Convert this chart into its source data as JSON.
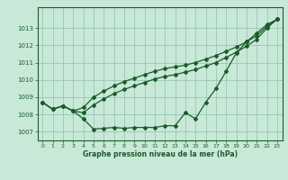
{
  "title": "Graphe pression niveau de la mer (hPa)",
  "background_color": "#c8e8d8",
  "grid_color": "#96c8b4",
  "line_color": "#1a5c28",
  "text_color": "#1a5c28",
  "xlim": [
    -0.5,
    23.5
  ],
  "ylim": [
    1006.5,
    1014.2
  ],
  "yticks": [
    1007,
    1008,
    1009,
    1010,
    1011,
    1012,
    1013
  ],
  "xticks": [
    0,
    1,
    2,
    3,
    4,
    5,
    6,
    7,
    8,
    9,
    10,
    11,
    12,
    13,
    14,
    15,
    16,
    17,
    18,
    19,
    20,
    21,
    22,
    23
  ],
  "line1": [
    1008.7,
    1008.3,
    1008.5,
    1008.2,
    1007.75,
    1007.15,
    1007.2,
    1007.25,
    1007.2,
    1007.25,
    1007.25,
    1007.25,
    1007.35,
    1007.35,
    1008.1,
    1007.75,
    1008.7,
    1009.5,
    1010.5,
    1011.55,
    1012.2,
    1012.7,
    1013.2,
    1013.5
  ],
  "line2": [
    1008.7,
    1008.3,
    1008.5,
    1008.2,
    1008.1,
    1008.55,
    1008.9,
    1009.2,
    1009.45,
    1009.65,
    1009.85,
    1010.05,
    1010.2,
    1010.3,
    1010.45,
    1010.6,
    1010.8,
    1011.0,
    1011.3,
    1011.6,
    1011.95,
    1012.35,
    1013.0,
    1013.5
  ],
  "line3": [
    1008.7,
    1008.3,
    1008.5,
    1008.2,
    1008.4,
    1009.0,
    1009.35,
    1009.65,
    1009.9,
    1010.1,
    1010.3,
    1010.5,
    1010.65,
    1010.75,
    1010.85,
    1011.0,
    1011.2,
    1011.4,
    1011.65,
    1011.9,
    1012.2,
    1012.55,
    1013.1,
    1013.5
  ]
}
